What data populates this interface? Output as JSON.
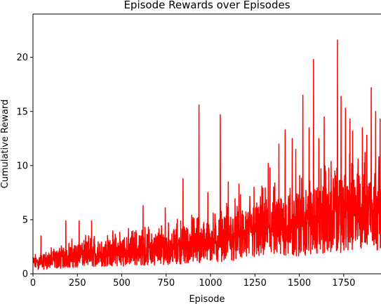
{
  "chart_data": {
    "type": "line",
    "title": "Episode Rewards over Episodes",
    "xlabel": "Episode",
    "ylabel": "Cumulative Reward",
    "xlim": [
      0,
      1960
    ],
    "ylim": [
      0,
      24
    ],
    "xticks": [
      0,
      250,
      500,
      750,
      1000,
      1250,
      1500,
      1750
    ],
    "yticks": [
      0,
      5,
      10,
      15,
      20
    ],
    "grid": false,
    "legend": "none",
    "series": [
      {
        "color": "#ff0000",
        "episodes": 1960,
        "trend": [
          [
            0,
            1.0
          ],
          [
            250,
            1.7
          ],
          [
            500,
            2.0
          ],
          [
            750,
            2.4
          ],
          [
            1000,
            3.0
          ],
          [
            1250,
            3.8
          ],
          [
            1500,
            4.6
          ],
          [
            1750,
            5.6
          ],
          [
            1959,
            6.3
          ]
        ],
        "noise_peaks": [
          [
            0,
            1.8
          ],
          [
            250,
            3.5
          ],
          [
            500,
            4.2
          ],
          [
            750,
            5.0
          ],
          [
            1000,
            6.0
          ],
          [
            1250,
            8.0
          ],
          [
            1500,
            9.5
          ],
          [
            1750,
            11.0
          ],
          [
            1959,
            12.0
          ]
        ],
        "spikes": [
          [
            45,
            3.5
          ],
          [
            185,
            4.9
          ],
          [
            260,
            4.9
          ],
          [
            330,
            4.9
          ],
          [
            620,
            6.3
          ],
          [
            745,
            6.1
          ],
          [
            845,
            8.8
          ],
          [
            935,
            15.6
          ],
          [
            985,
            7.5
          ],
          [
            1055,
            14.7
          ],
          [
            1100,
            8.5
          ],
          [
            1160,
            8.3
          ],
          [
            1245,
            8.0
          ],
          [
            1325,
            10.2
          ],
          [
            1335,
            9.8
          ],
          [
            1385,
            12.0
          ],
          [
            1420,
            13.3
          ],
          [
            1460,
            12.5
          ],
          [
            1480,
            11.5
          ],
          [
            1520,
            16.5
          ],
          [
            1555,
            13.5
          ],
          [
            1580,
            19.8
          ],
          [
            1610,
            12.5
          ],
          [
            1640,
            14.5
          ],
          [
            1700,
            9.5
          ],
          [
            1715,
            21.6
          ],
          [
            1735,
            16.4
          ],
          [
            1760,
            15.3
          ],
          [
            1785,
            14.3
          ],
          [
            1800,
            13.2
          ],
          [
            1830,
            9.5
          ],
          [
            1855,
            13.5
          ],
          [
            1880,
            12.8
          ],
          [
            1905,
            17.2
          ],
          [
            1930,
            15.0
          ],
          [
            1955,
            14.3
          ]
        ]
      }
    ]
  }
}
